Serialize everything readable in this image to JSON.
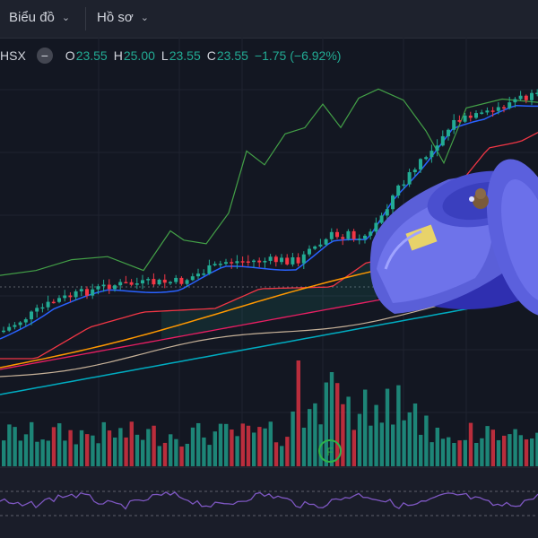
{
  "toolbar": {
    "chart_menu": "Biểu đồ",
    "profile_menu": "Hồ sơ"
  },
  "legend": {
    "symbol": "HSX",
    "open_label": "O",
    "open": "23.55",
    "high_label": "H",
    "high": "25.00",
    "low_label": "L",
    "low": "23.55",
    "close_label": "C",
    "close": "23.55",
    "change": "−1.75 (−6.92%)"
  },
  "chart_data": [
    {
      "type": "candlestick",
      "title": "",
      "xlabel": "",
      "ylabel": "",
      "grid": true,
      "colors": {
        "up": "#22ab94",
        "down": "#f23645"
      },
      "overlays": [
        "blue short MA",
        "red MA",
        "orange MA",
        "pink MA",
        "teal long MA",
        "green indicator line"
      ]
    },
    {
      "type": "bar",
      "title": "",
      "series": [
        {
          "values": "volume"
        }
      ],
      "colors": {
        "up": "#22ab94",
        "down": "#f23645"
      }
    },
    {
      "type": "line",
      "title": "",
      "series": [
        {
          "values": "oscillator"
        }
      ],
      "colors": {
        "line": "#7e57c2"
      }
    }
  ],
  "overlay_object": {
    "icon": "blue-plastic-toy-toilet-icon"
  }
}
